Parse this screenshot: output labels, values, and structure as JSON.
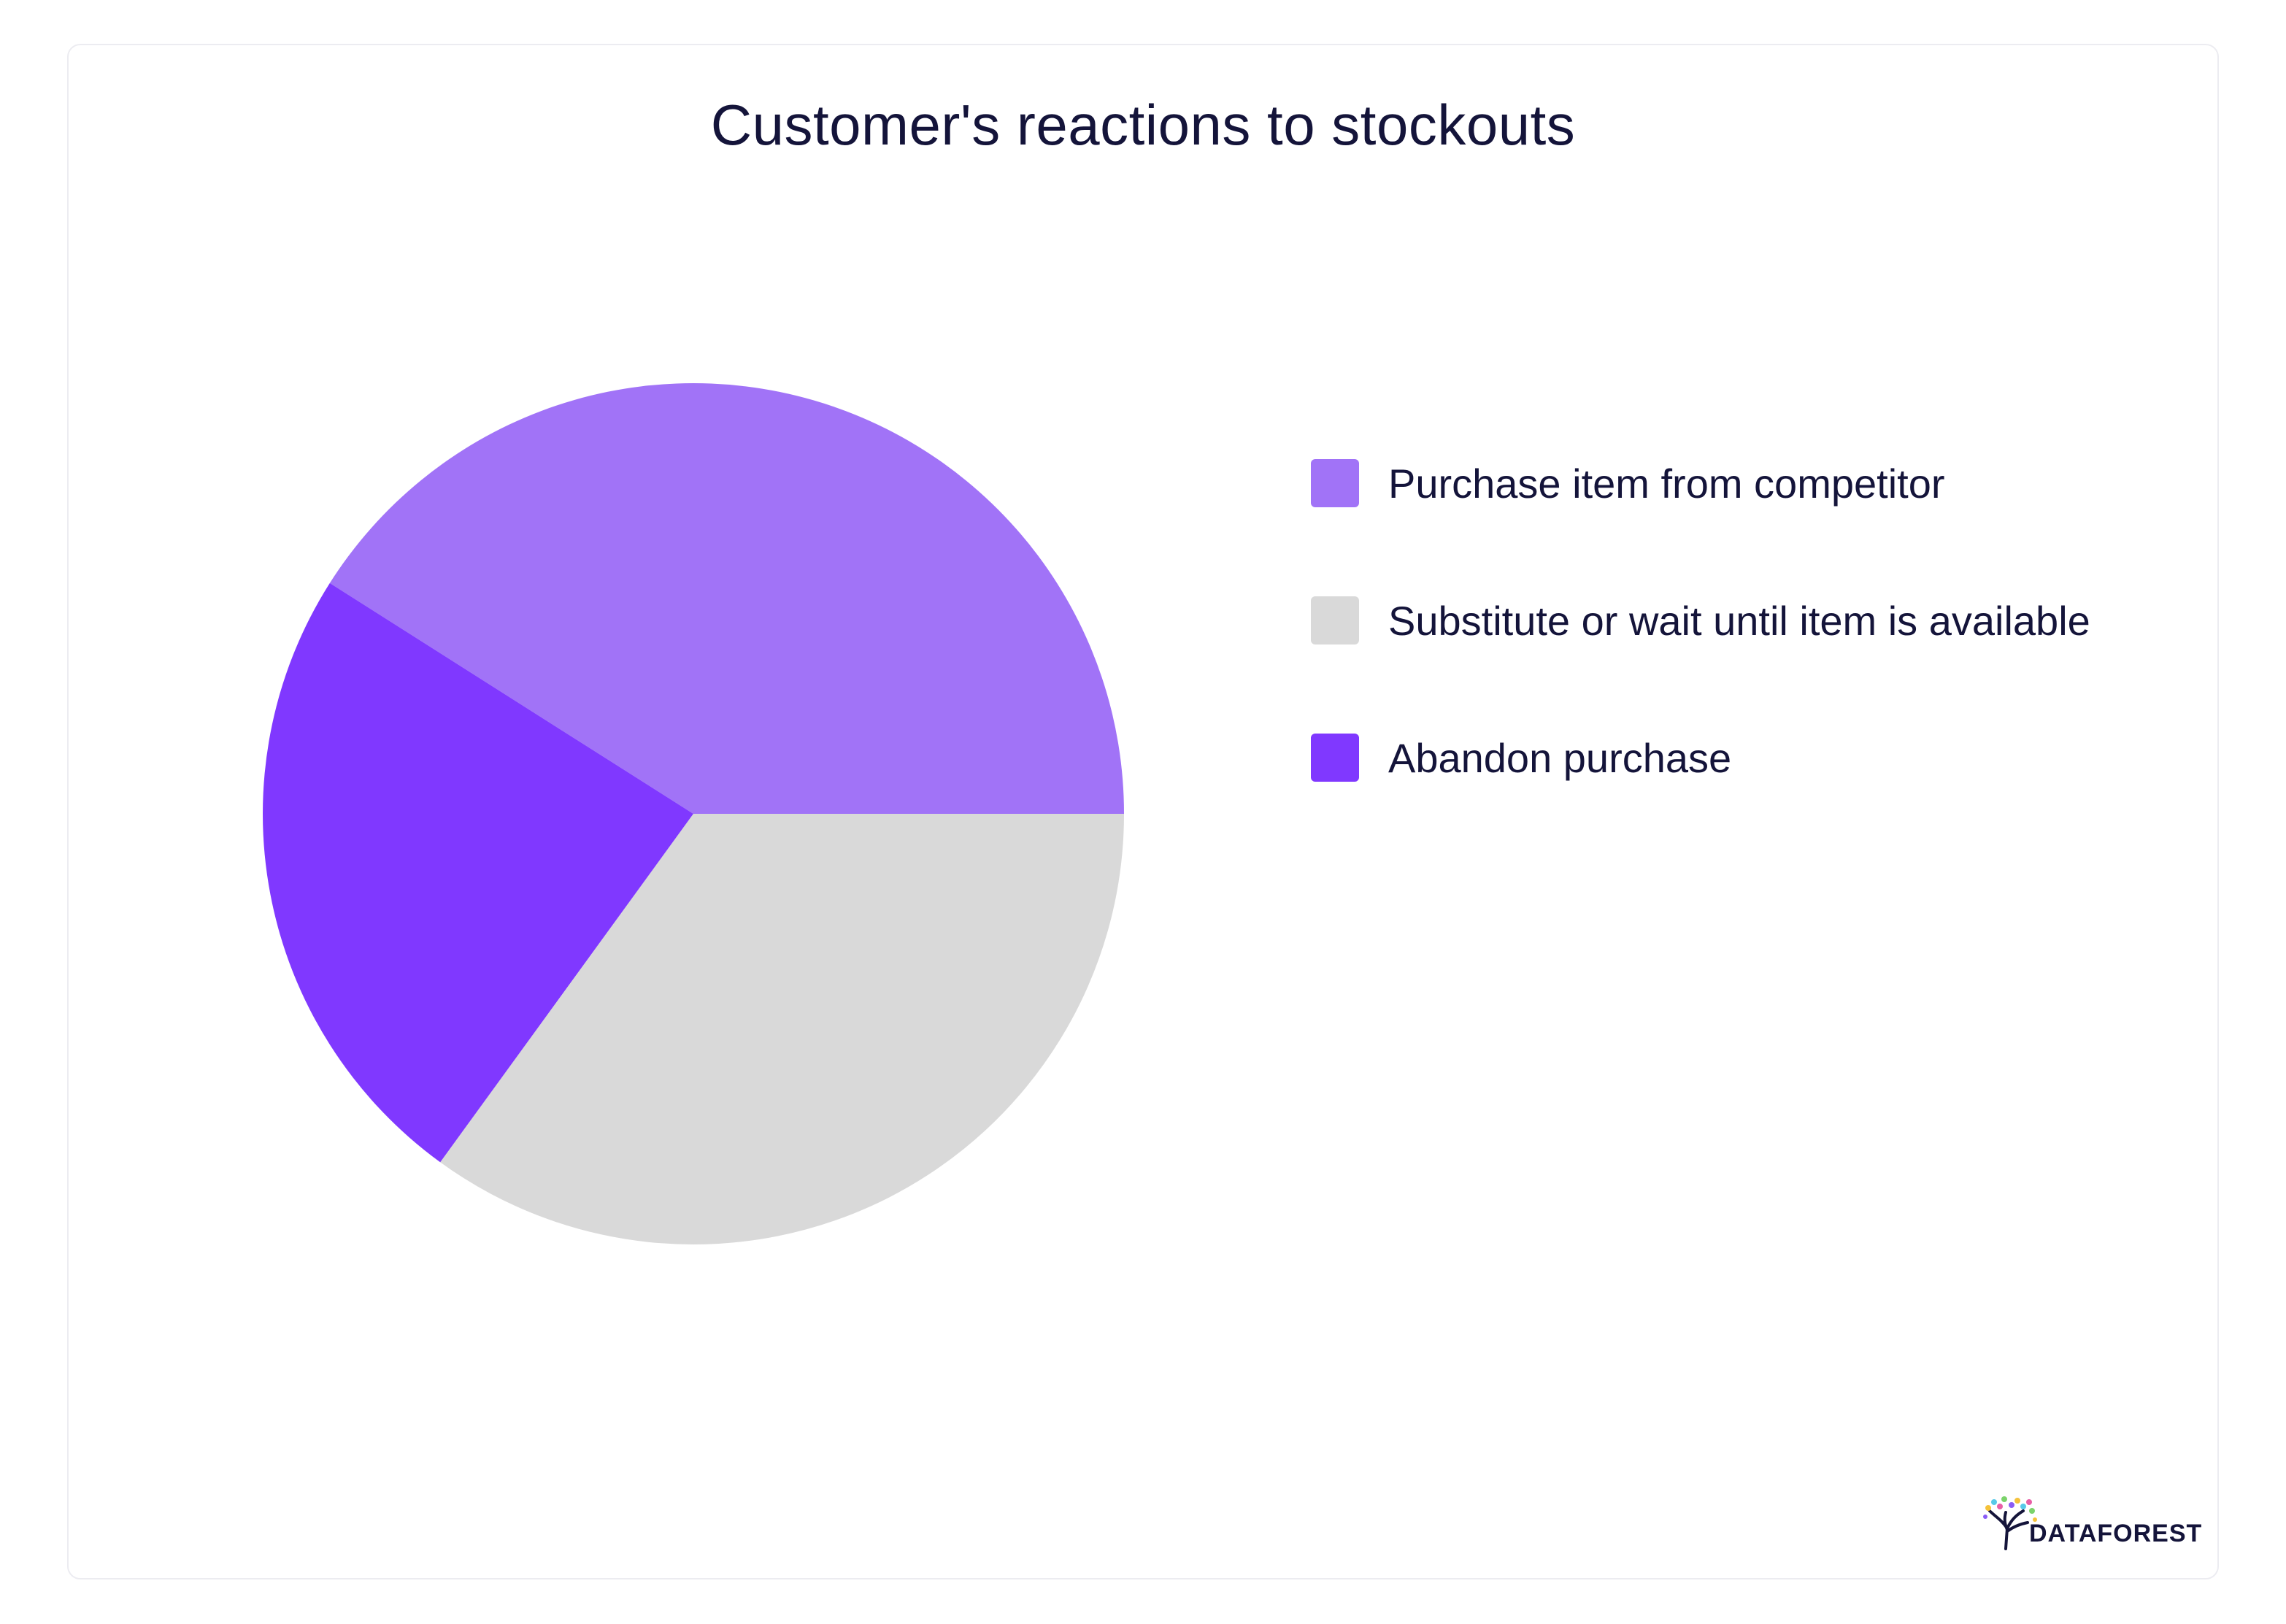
{
  "chart_data": {
    "type": "pie",
    "title": "Customer's reactions to stockouts",
    "categories": [
      "Purchase item from competitor",
      "Substitute or wait until item is available",
      "Abandon purchase"
    ],
    "values": [
      41,
      35,
      24
    ],
    "unit": "%",
    "colors": [
      "#a173f7",
      "#d9d9d9",
      "#8038ff"
    ],
    "start_angle_deg": 0,
    "direction": "counterclockwise-from-3-oclock",
    "legend_position": "right"
  },
  "branding": {
    "logo_text": "DATAFOREST"
  }
}
